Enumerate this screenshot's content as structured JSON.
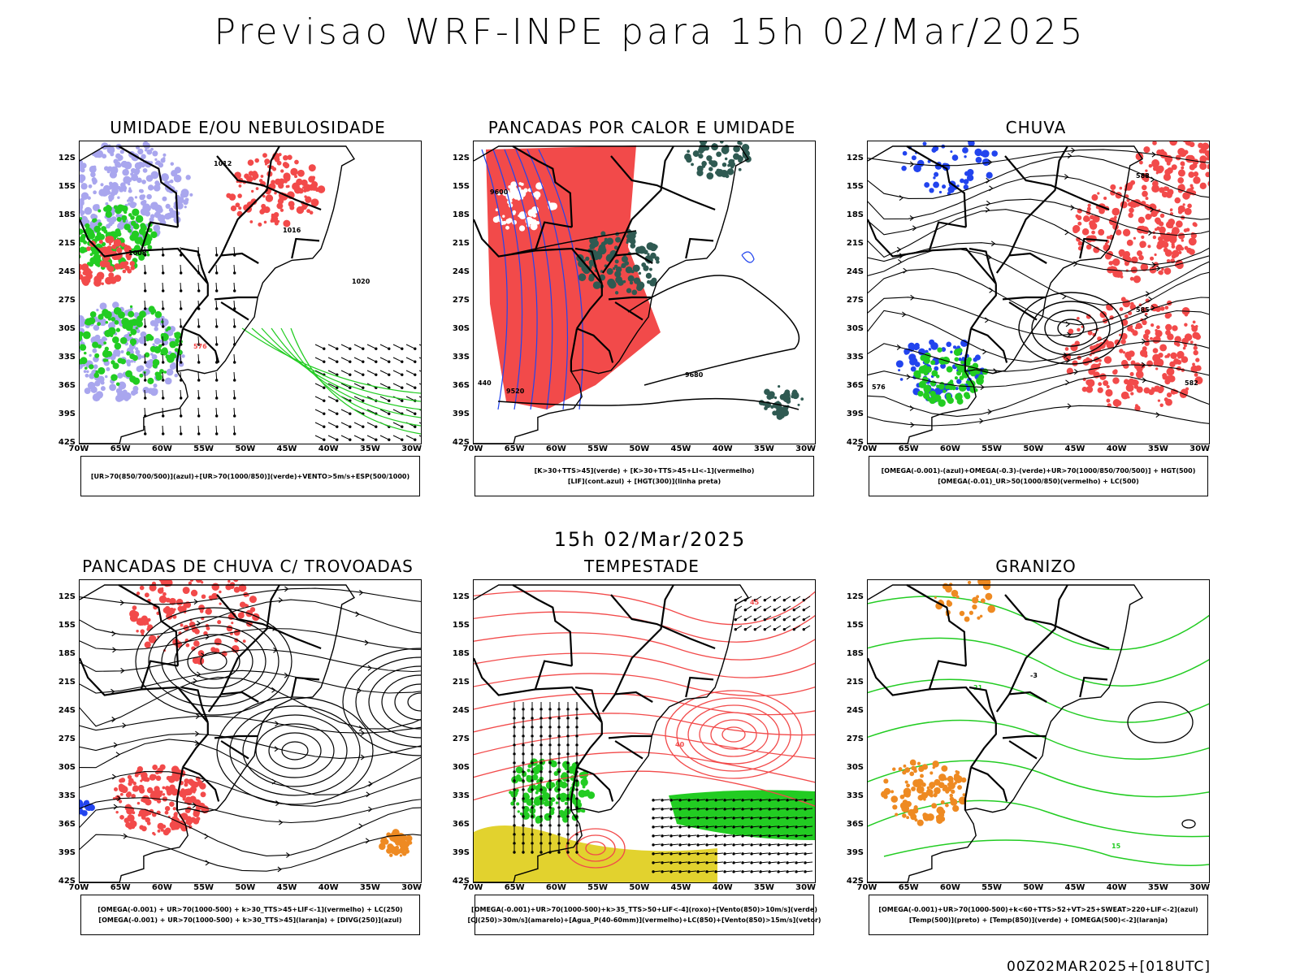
{
  "header": {
    "title": "Previsao WRF-INPE  para 15h 02/Mar/2025"
  },
  "middle": {
    "title": "15h 02/Mar/2025"
  },
  "footer": {
    "stamp": "00Z02MAR2025+[018UTC]"
  },
  "axes": {
    "lat_labels": [
      "12S",
      "15S",
      "18S",
      "21S",
      "24S",
      "27S",
      "30S",
      "33S",
      "36S",
      "39S",
      "42S"
    ],
    "lon_labels": [
      "70W",
      "65W",
      "60W",
      "55W",
      "50W",
      "45W",
      "40W",
      "35W",
      "30W"
    ]
  },
  "colors": {
    "red": "#f24a4a",
    "green": "#22cc22",
    "blue": "#2244ee",
    "lavender": "#a9a6ee",
    "darkteal": "#2f5a52",
    "yellow": "#e2d22e",
    "orange": "#ee8a22",
    "black": "#000000"
  },
  "panels": [
    {
      "title": "UMIDADE E/OU NEBULOSIDADE",
      "legend": [
        "[UR>70(850/700/500)](azul)+[UR>70(1000/850)](verde)+VENTO>5m/s+ESP(500/1000)"
      ]
    },
    {
      "title": "PANCADAS POR CALOR E UMIDADE",
      "legend": [
        "[K>30+TTS>45](verde)  +  [K>30+TTS>45+LI<-1](vermelho)",
        "[LIF](cont.azul)  +  [HGT(300)](linha preta)"
      ]
    },
    {
      "title": "CHUVA",
      "legend": [
        "[OMEGA(-0.001)-(azul)+OMEGA(-0.3)-(verde)+UR>70(1000/850/700/500)]  +  HGT(500)",
        "[OMEGA(-0.01)_UR>50(1000/850)(vermelho)  +  LC(500)"
      ]
    },
    {
      "title": "PANCADAS DE CHUVA C/ TROVOADAS",
      "legend": [
        "[OMEGA(-0.001)  +  UR>70(1000-500)  +  k>30_TTS>45+LIF<-1](vermelho)  +  LC(250)",
        "[OMEGA(-0.001)  +  UR>70(1000-500)  +  k>30_TTS>45](laranja)  +  [DIVG(250)](azul)"
      ]
    },
    {
      "title": "TEMPESTADE",
      "legend": [
        "[OMEGA(-0.001)+UR>70(1000-500)+k>35_TTS>50+LIF<-4](roxo)+[Vento(850)>10m/s](verde)",
        "[CJ(250)>30m/s](amarelo)+[Agua_P(40-60mm)](vermelho)+LC(850)+[Vento(850)>15m/s](vetor)"
      ]
    },
    {
      "title": "GRANIZO",
      "legend": [
        "[OMEGA(-0.001)+UR>70(1000-500)+k<60+TTS>52+VT>25+SWEAT>220+LIF<-2](azul)",
        "[Temp(500)](preto)  +  [Temp(850)](verde)  +  [OMEGA(500)<-2](laranja)"
      ]
    }
  ],
  "contour_labels": {
    "p1": [
      "1012",
      "1016",
      "1020",
      "1008",
      "576"
    ],
    "p2": [
      "9600",
      "9680",
      "440",
      "9520"
    ],
    "p3": [
      "588",
      "585",
      "582",
      "576"
    ],
    "p5": [
      "40",
      "45"
    ],
    "p6": [
      "15",
      "21",
      "-3"
    ]
  }
}
